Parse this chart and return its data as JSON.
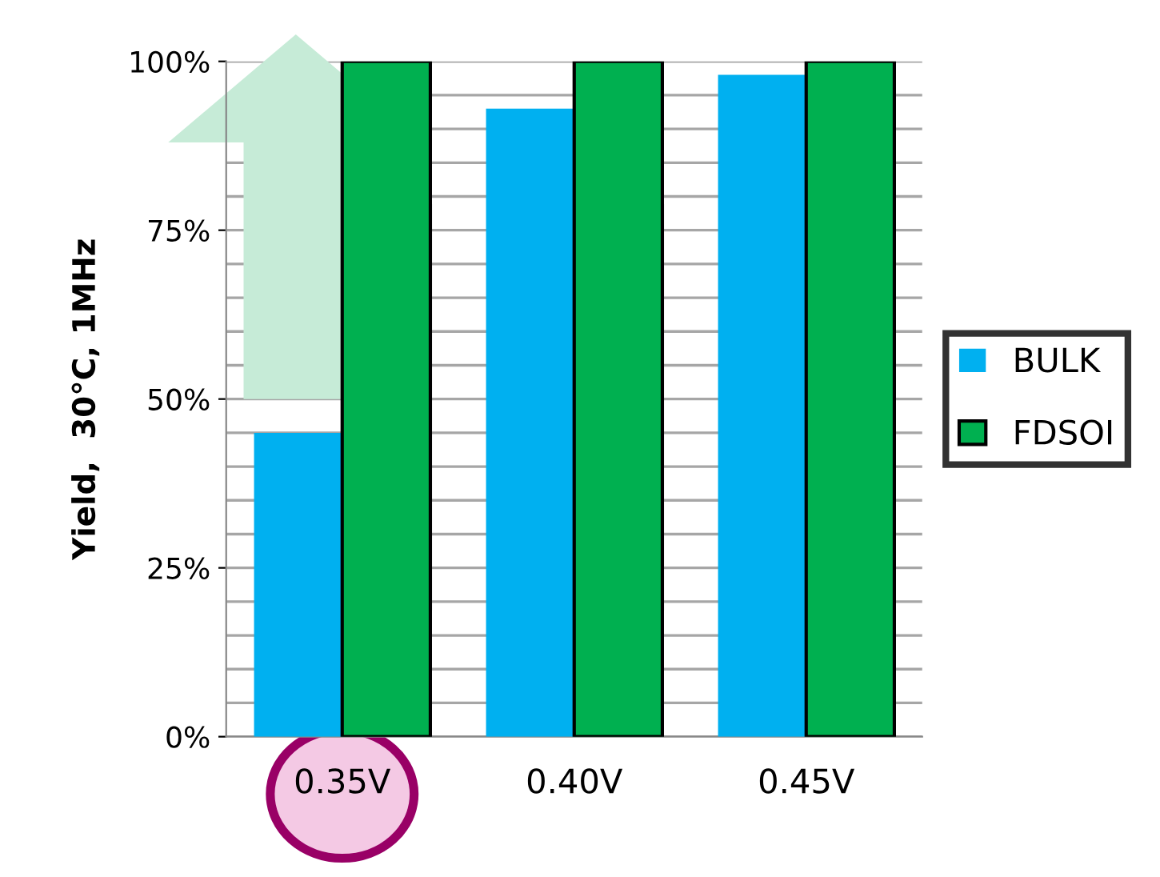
{
  "chart_data": {
    "type": "bar",
    "ylabel": "Yield,  30°C, 1MHz",
    "categories": [
      "0.35V",
      "0.40V",
      "0.45V"
    ],
    "series": [
      {
        "name": "BULK",
        "color": "#00b0f0",
        "values": [
          45,
          93,
          98
        ]
      },
      {
        "name": "FDSOI",
        "color": "#00b050",
        "values": [
          100,
          100,
          100
        ]
      }
    ],
    "ylim": [
      0,
      100
    ],
    "yticks": [
      {
        "value": 0,
        "label": "0%"
      },
      {
        "value": 5,
        "label": null
      },
      {
        "value": 10,
        "label": null
      },
      {
        "value": 15,
        "label": null
      },
      {
        "value": 20,
        "label": null
      },
      {
        "value": 25,
        "label": "25%"
      },
      {
        "value": 30,
        "label": null
      },
      {
        "value": 35,
        "label": null
      },
      {
        "value": 40,
        "label": null
      },
      {
        "value": 45,
        "label": null
      },
      {
        "value": 50,
        "label": "50%"
      },
      {
        "value": 55,
        "label": null
      },
      {
        "value": 60,
        "label": null
      },
      {
        "value": 65,
        "label": null
      },
      {
        "value": 70,
        "label": null
      },
      {
        "value": 75,
        "label": "75%"
      },
      {
        "value": 80,
        "label": null
      },
      {
        "value": 85,
        "label": null
      },
      {
        "value": 90,
        "label": null
      },
      {
        "value": 95,
        "label": null
      },
      {
        "value": 100,
        "label": "100%"
      }
    ],
    "grid": "y",
    "legend": "right"
  }
}
